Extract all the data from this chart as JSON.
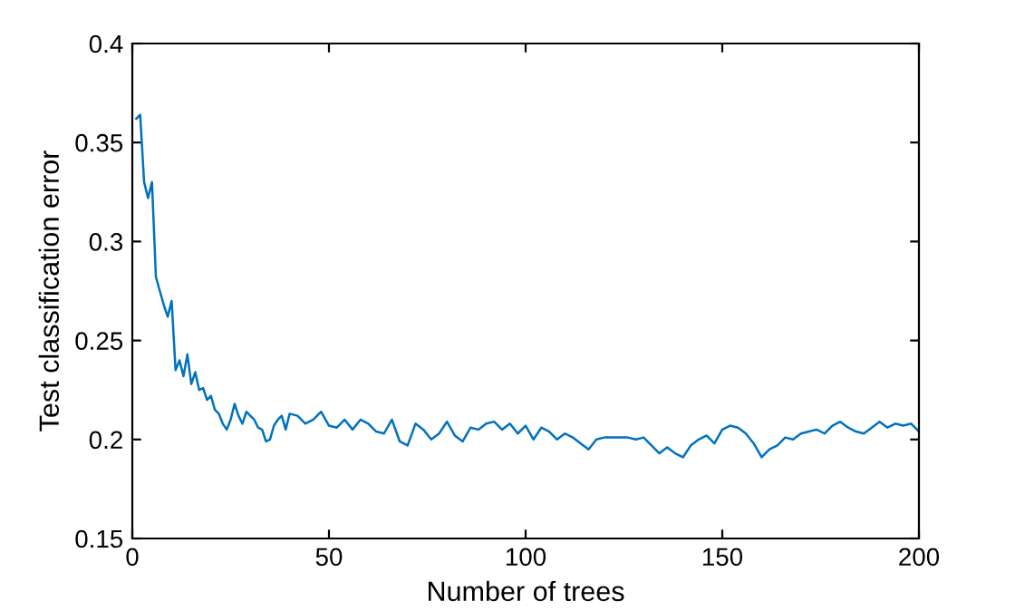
{
  "chart_data": {
    "type": "line",
    "xlabel": "Number of trees",
    "ylabel": "Test classification error",
    "x": [
      1,
      2,
      3,
      4,
      5,
      6,
      7,
      8,
      9,
      10,
      11,
      12,
      13,
      14,
      15,
      16,
      17,
      18,
      19,
      20,
      21,
      22,
      23,
      24,
      25,
      26,
      27,
      28,
      29,
      30,
      31,
      32,
      33,
      34,
      35,
      36,
      37,
      38,
      39,
      40,
      42,
      44,
      46,
      48,
      50,
      52,
      54,
      56,
      58,
      60,
      62,
      64,
      66,
      68,
      70,
      72,
      74,
      76,
      78,
      80,
      82,
      84,
      86,
      88,
      90,
      92,
      94,
      96,
      98,
      100,
      102,
      104,
      106,
      108,
      110,
      112,
      114,
      116,
      118,
      120,
      122,
      124,
      126,
      128,
      130,
      132,
      134,
      136,
      138,
      140,
      142,
      144,
      146,
      148,
      150,
      152,
      154,
      156,
      158,
      160,
      162,
      164,
      166,
      168,
      170,
      172,
      174,
      176,
      178,
      180,
      182,
      184,
      186,
      188,
      190,
      192,
      194,
      196,
      198,
      200
    ],
    "series": [
      {
        "color": "#0072bd",
        "values": [
          0.362,
          0.364,
          0.33,
          0.322,
          0.33,
          0.282,
          0.275,
          0.268,
          0.262,
          0.27,
          0.235,
          0.24,
          0.232,
          0.243,
          0.228,
          0.234,
          0.225,
          0.226,
          0.22,
          0.222,
          0.215,
          0.213,
          0.208,
          0.205,
          0.21,
          0.218,
          0.212,
          0.208,
          0.214,
          0.212,
          0.21,
          0.206,
          0.205,
          0.199,
          0.2,
          0.207,
          0.21,
          0.212,
          0.205,
          0.213,
          0.212,
          0.208,
          0.21,
          0.214,
          0.207,
          0.206,
          0.21,
          0.205,
          0.21,
          0.208,
          0.204,
          0.203,
          0.21,
          0.199,
          0.197,
          0.208,
          0.205,
          0.2,
          0.203,
          0.209,
          0.202,
          0.199,
          0.206,
          0.205,
          0.208,
          0.209,
          0.205,
          0.208,
          0.203,
          0.207,
          0.2,
          0.206,
          0.204,
          0.2,
          0.203,
          0.201,
          0.198,
          0.195,
          0.2,
          0.201,
          0.201,
          0.201,
          0.201,
          0.2,
          0.201,
          0.197,
          0.193,
          0.196,
          0.193,
          0.191,
          0.197,
          0.2,
          0.202,
          0.198,
          0.205,
          0.207,
          0.206,
          0.203,
          0.198,
          0.191,
          0.195,
          0.197,
          0.201,
          0.2,
          0.203,
          0.204,
          0.205,
          0.203,
          0.207,
          0.209,
          0.206,
          0.204,
          0.203,
          0.206,
          0.209,
          0.206,
          0.208,
          0.207,
          0.208,
          0.204
        ]
      }
    ],
    "xlim": [
      0,
      200
    ],
    "ylim": [
      0.15,
      0.4
    ],
    "xticks": [
      0,
      50,
      100,
      150,
      200
    ],
    "yticks": [
      0.15,
      0.2,
      0.25,
      0.3,
      0.35,
      0.4
    ],
    "grid": false,
    "marker": "none",
    "line_style": "solid"
  }
}
